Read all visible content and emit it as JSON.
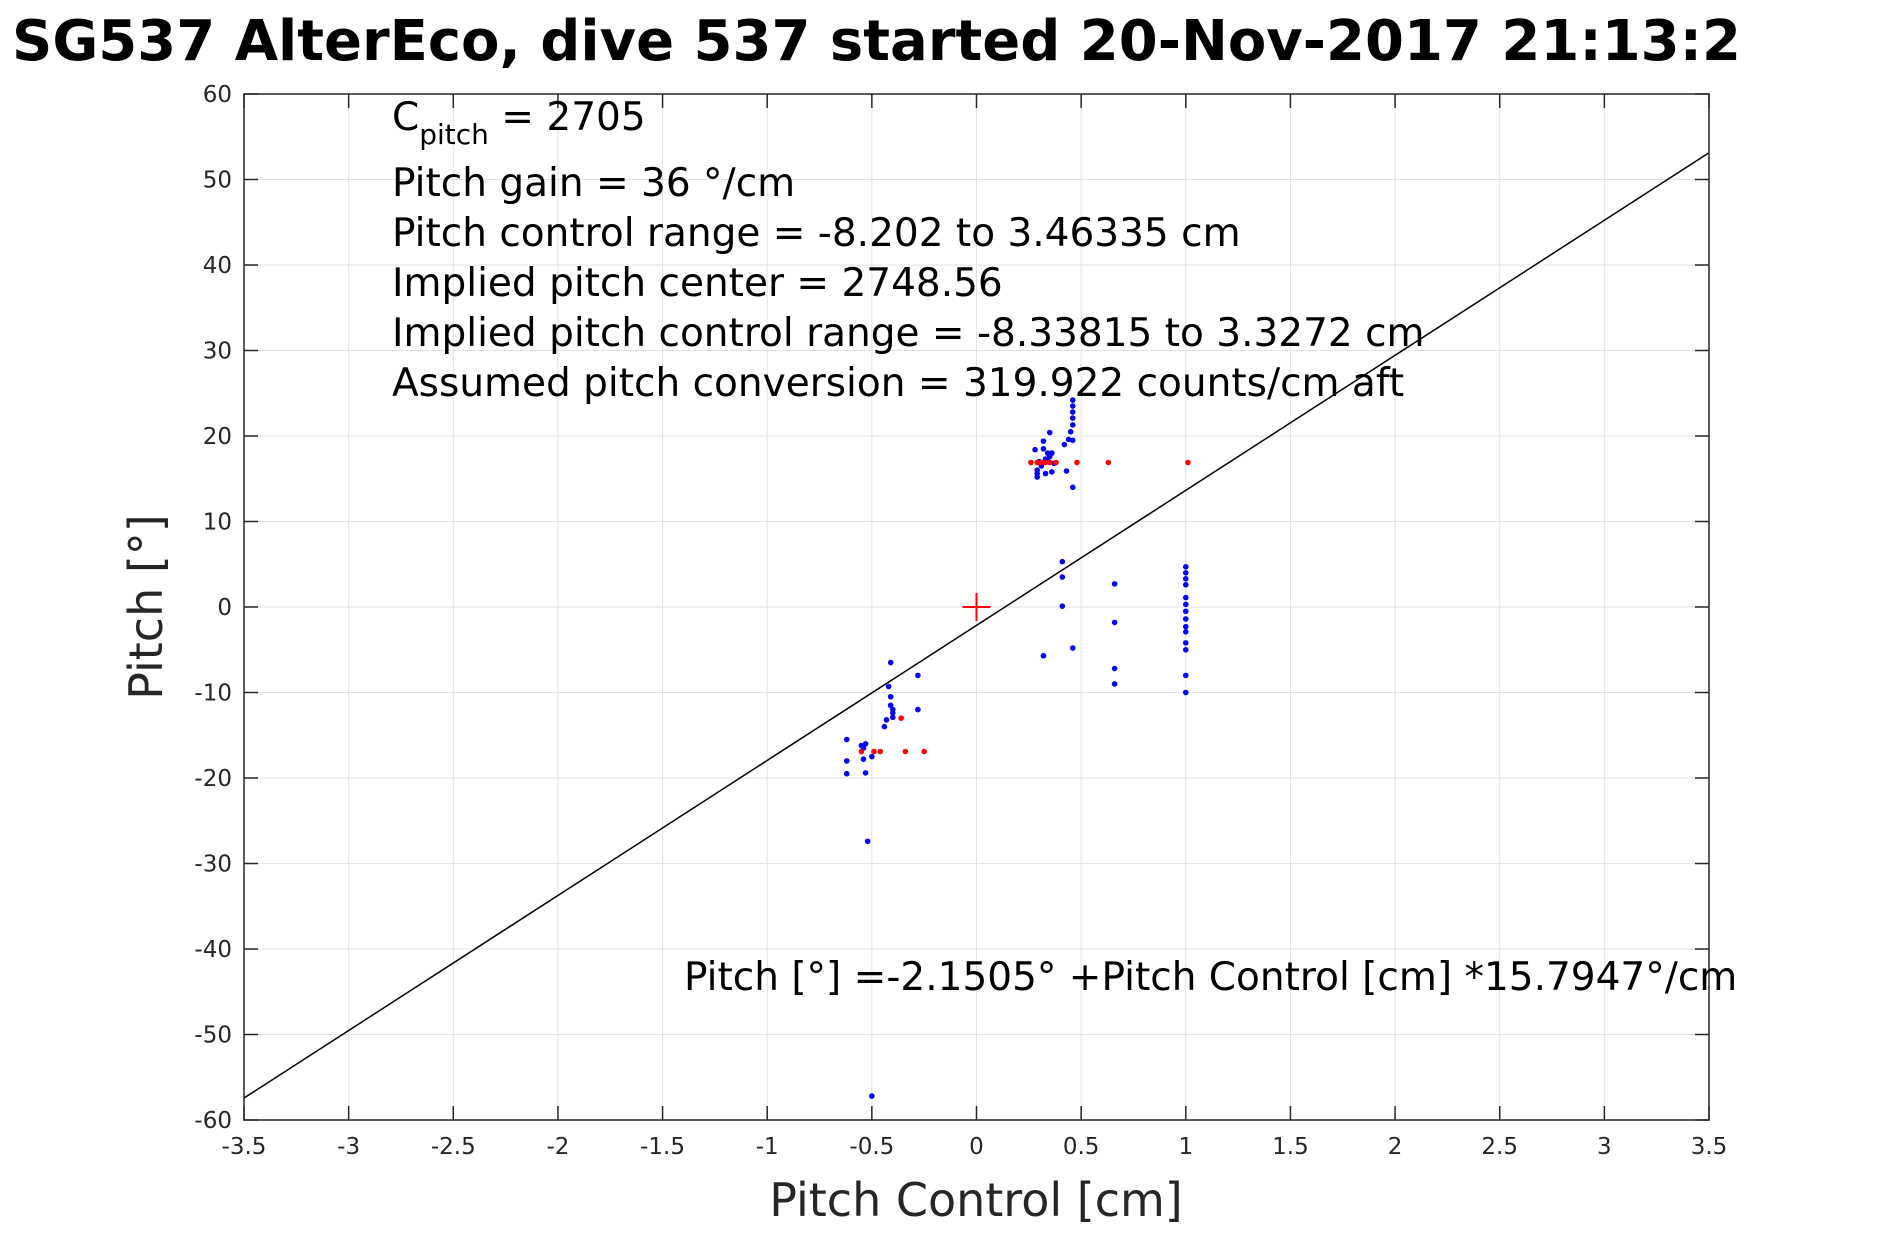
{
  "chart_data": {
    "type": "scatter",
    "title": "SG537 AlterEco, dive 537 started 20-Nov-2017 21:13:2",
    "xlabel": "Pitch Control [cm]",
    "ylabel": "Pitch [°]",
    "xlim": [
      -3.5,
      3.5
    ],
    "ylim": [
      -60,
      60
    ],
    "x_ticks": [
      -3.5,
      -3,
      -2.5,
      -2,
      -1.5,
      -1,
      -0.5,
      0,
      0.5,
      1,
      1.5,
      2,
      2.5,
      3,
      3.5
    ],
    "x_tick_labels": [
      "-3.5",
      "-3",
      "-2.5",
      "-2",
      "-1.5",
      "-1",
      "-0.5",
      "0",
      "0.5",
      "1",
      "1.5",
      "2",
      "2.5",
      "3",
      "3.5"
    ],
    "y_ticks": [
      -60,
      -50,
      -40,
      -30,
      -20,
      -10,
      0,
      10,
      20,
      30,
      40,
      50,
      60
    ],
    "y_tick_labels": [
      "-60",
      "-50",
      "-40",
      "-30",
      "-20",
      "-10",
      "0",
      "10",
      "20",
      "30",
      "40",
      "50",
      "60"
    ],
    "grid": true,
    "annotations": {
      "c_pitch_main": "C",
      "c_pitch_sub": "pitch",
      "c_pitch_value": " = 2705",
      "pitch_gain": "Pitch gain = 36 °/cm",
      "pitch_control_range": "Pitch control range = -8.202 to 3.46335 cm",
      "implied_pitch_center": "Implied pitch center = 2748.56",
      "implied_pitch_control_range": "Implied pitch control range = -8.33815 to 3.3272 cm",
      "assumed_conversion": "Assumed pitch conversion = 319.922 counts/cm aft",
      "fit_equation": "Pitch [°] =-2.1505° +Pitch Control [cm] *15.7947°/cm"
    },
    "fit_line": {
      "intercept": -2.1505,
      "slope": 15.7947
    },
    "center_marker": {
      "x": 0,
      "y": 0,
      "color": "#ff0000"
    },
    "series": [
      {
        "color": "#0000ff",
        "points": [
          [
            0.28,
            18.4
          ],
          [
            0.29,
            16.0
          ],
          [
            0.29,
            15.2
          ],
          [
            0.29,
            15.6
          ],
          [
            0.3,
            17.0
          ],
          [
            0.31,
            16.5
          ],
          [
            0.32,
            18.5
          ],
          [
            0.32,
            19.4
          ],
          [
            0.33,
            17.3
          ],
          [
            0.33,
            15.6
          ],
          [
            0.34,
            18.0
          ],
          [
            0.34,
            17.1
          ],
          [
            0.35,
            20.4
          ],
          [
            0.35,
            17.6
          ],
          [
            0.36,
            18.0
          ],
          [
            0.36,
            15.8
          ],
          [
            0.37,
            16.8
          ],
          [
            0.42,
            19.0
          ],
          [
            0.43,
            15.9
          ],
          [
            0.44,
            19.6
          ],
          [
            0.45,
            20.5
          ],
          [
            0.46,
            19.5
          ],
          [
            0.46,
            21.3
          ],
          [
            0.46,
            22.1
          ],
          [
            0.46,
            22.8
          ],
          [
            0.46,
            23.5
          ],
          [
            0.46,
            24.2
          ],
          [
            0.46,
            14.0
          ],
          [
            0.41,
            5.3
          ],
          [
            0.41,
            3.5
          ],
          [
            0.41,
            0.1
          ],
          [
            0.32,
            -5.7
          ],
          [
            0.46,
            -4.8
          ],
          [
            0.66,
            2.7
          ],
          [
            0.66,
            -1.8
          ],
          [
            0.66,
            -7.2
          ],
          [
            0.66,
            -9.0
          ],
          [
            1.0,
            4.7
          ],
          [
            1.0,
            4.0
          ],
          [
            1.0,
            3.3
          ],
          [
            1.0,
            2.6
          ],
          [
            1.0,
            1.1
          ],
          [
            1.0,
            0.3
          ],
          [
            1.0,
            -0.5
          ],
          [
            1.0,
            -1.4
          ],
          [
            1.0,
            -2.3
          ],
          [
            1.0,
            -2.9
          ],
          [
            1.0,
            -4.2
          ],
          [
            1.0,
            -5.0
          ],
          [
            1.0,
            -8.0
          ],
          [
            1.0,
            -10.0
          ],
          [
            -0.62,
            -15.5
          ],
          [
            -0.62,
            -18.0
          ],
          [
            -0.62,
            -19.5
          ],
          [
            -0.55,
            -16.2
          ],
          [
            -0.54,
            -17.8
          ],
          [
            -0.54,
            -16.5
          ],
          [
            -0.53,
            -16.0
          ],
          [
            -0.53,
            -19.4
          ],
          [
            -0.52,
            -27.4
          ],
          [
            -0.5,
            -57.2
          ],
          [
            -0.5,
            -17.5
          ],
          [
            -0.44,
            -14.0
          ],
          [
            -0.43,
            -13.2
          ],
          [
            -0.42,
            -9.3
          ],
          [
            -0.41,
            -6.5
          ],
          [
            -0.41,
            -10.5
          ],
          [
            -0.41,
            -11.5
          ],
          [
            -0.4,
            -12.0
          ],
          [
            -0.4,
            -12.4
          ],
          [
            -0.4,
            -12.9
          ],
          [
            -0.28,
            -8.0
          ],
          [
            -0.28,
            -12.0
          ]
        ]
      },
      {
        "color": "#ff0000",
        "points": [
          [
            0.26,
            16.9
          ],
          [
            0.29,
            16.9
          ],
          [
            0.31,
            16.9
          ],
          [
            0.33,
            16.9
          ],
          [
            0.35,
            16.9
          ],
          [
            0.38,
            16.9
          ],
          [
            0.48,
            16.9
          ],
          [
            0.63,
            16.9
          ],
          [
            1.01,
            16.9
          ],
          [
            -0.55,
            -16.9
          ],
          [
            -0.49,
            -16.9
          ],
          [
            -0.46,
            -16.9
          ],
          [
            -0.36,
            -13.0
          ],
          [
            -0.34,
            -16.9
          ],
          [
            -0.25,
            -16.9
          ]
        ]
      }
    ]
  }
}
